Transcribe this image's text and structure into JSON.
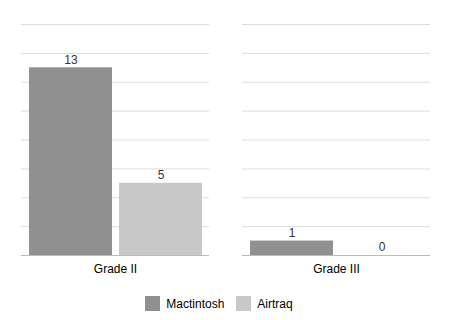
{
  "chart_data": {
    "type": "bar",
    "categories": [
      "Grade II",
      "Grade III"
    ],
    "series": [
      {
        "name": "Mactintosh",
        "color": "#909090",
        "values": [
          13,
          1
        ]
      },
      {
        "name": "Airtraq",
        "color": "#c8c8c8",
        "values": [
          5,
          0
        ]
      }
    ],
    "ylim": [
      0,
      16
    ],
    "yticks": [
      0,
      2,
      4,
      6,
      8,
      10,
      12,
      14,
      16
    ],
    "grid": true,
    "legend": "bottom",
    "data_labels": true,
    "tick_labels": "x"
  }
}
